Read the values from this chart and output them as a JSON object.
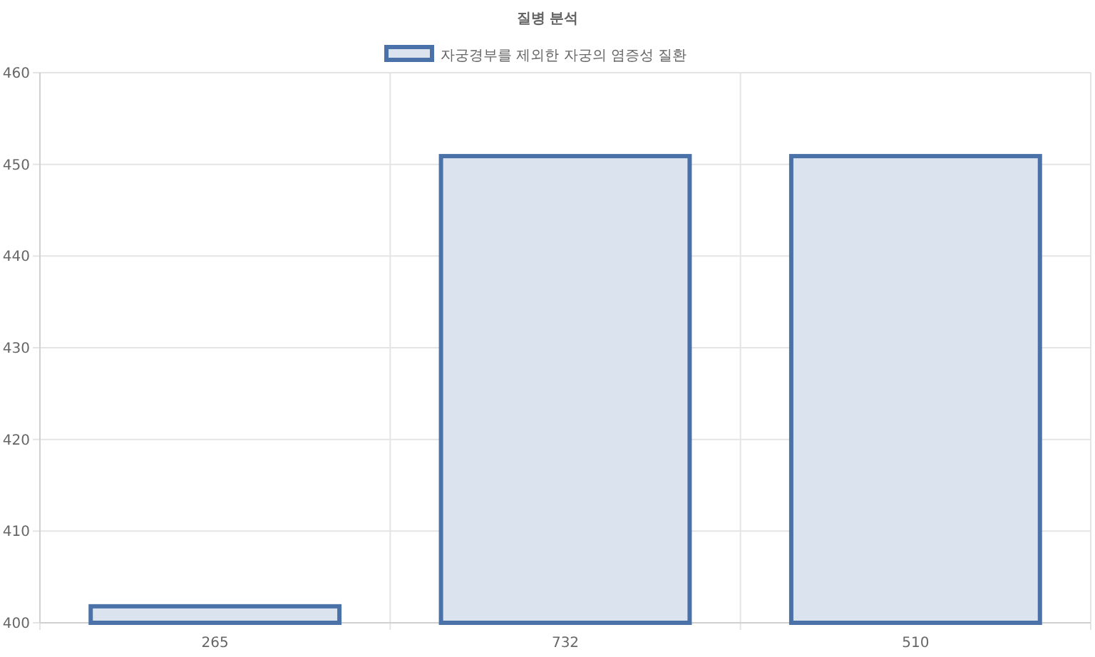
{
  "chart_data": {
    "type": "bar",
    "title": "질병 분석",
    "categories": [
      "265",
      "732",
      "510"
    ],
    "series": [
      {
        "name": "자궁경부를 제외한 자궁의 염증성 질환",
        "color": "#4a72a8",
        "values": [
          401.8,
          450.9,
          450.9
        ]
      }
    ],
    "ylim": [
      400,
      460
    ],
    "yticks": [
      400,
      410,
      420,
      430,
      440,
      450,
      460
    ],
    "grid": true,
    "legend": "top"
  }
}
